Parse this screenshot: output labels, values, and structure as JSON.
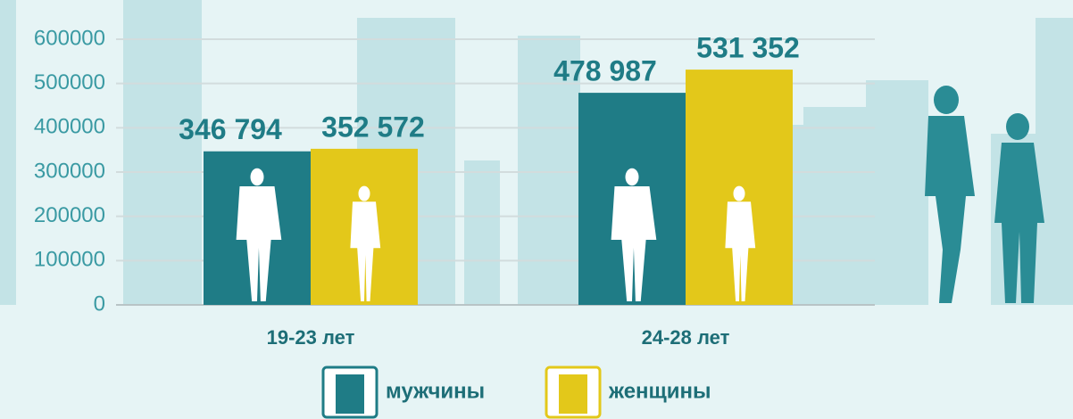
{
  "chart_data": {
    "type": "bar",
    "categories": [
      "19-23 лет",
      "24-28 лет"
    ],
    "series": [
      {
        "name": "мужчины",
        "color": "#1f7c86",
        "values": [
          346794,
          478987
        ],
        "value_labels": [
          "346 794",
          "478 987"
        ]
      },
      {
        "name": "женщины",
        "color": "#e3c81a",
        "values": [
          352572,
          531352
        ],
        "value_labels": [
          "352 572",
          "531 352"
        ]
      }
    ],
    "ylim": [
      0,
      600000
    ],
    "yticks": [
      0,
      100000,
      200000,
      300000,
      400000,
      500000,
      600000
    ],
    "grid": true
  }
}
